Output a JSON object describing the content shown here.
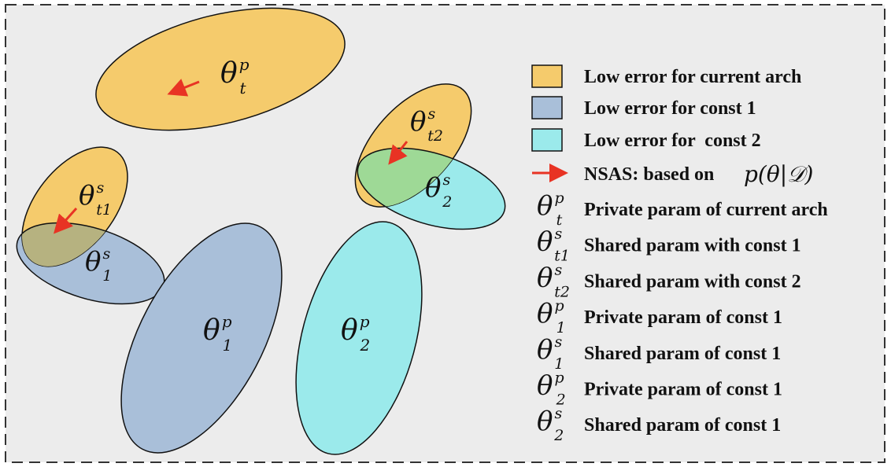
{
  "colors": {
    "background": "#ececec",
    "orange": "#f5cb6c",
    "blue": "#a9bfd9",
    "cyan": "#9beaeb",
    "overlap_orange_blue": "#b6b280",
    "overlap_orange_cyan": "#9ed996",
    "arrow": "#e83324",
    "border": "#333333"
  },
  "ellipse_labels": {
    "theta_t_p": {
      "base": "θ",
      "sup": "p",
      "sub": "t"
    },
    "theta_t1_s": {
      "base": "θ",
      "sup": "s",
      "sub": "t1"
    },
    "theta_1_s": {
      "base": "θ",
      "sup": "s",
      "sub": "1"
    },
    "theta_t2_s": {
      "base": "θ",
      "sup": "s",
      "sub": "t2"
    },
    "theta_2_s": {
      "base": "θ",
      "sup": "s",
      "sub": "2"
    },
    "theta_1_p": {
      "base": "θ",
      "sup": "p",
      "sub": "1"
    },
    "theta_2_p": {
      "base": "θ",
      "sup": "p",
      "sub": "2"
    }
  },
  "legend": {
    "swatches": [
      {
        "color_key": "orange",
        "label": "Low error for current arch"
      },
      {
        "color_key": "blue",
        "label": "Low error for const 1"
      },
      {
        "color_key": "cyan",
        "label": "Low error for  const 2"
      }
    ],
    "arrow_item": {
      "label": "NSAS: based on",
      "formula": "p(θ|𝒟)"
    },
    "symbols": [
      {
        "base": "θ",
        "sup": "p",
        "sub": "t",
        "label": "Private param of current arch"
      },
      {
        "base": "θ",
        "sup": "s",
        "sub": "t1",
        "label": "Shared param with const 1"
      },
      {
        "base": "θ",
        "sup": "s",
        "sub": "t2",
        "label": "Shared param with const 2"
      },
      {
        "base": "θ",
        "sup": "p",
        "sub": "1",
        "label": "Private param of const 1"
      },
      {
        "base": "θ",
        "sup": "s",
        "sub": "1",
        "label": "Shared param of const 1"
      },
      {
        "base": "θ",
        "sup": "p",
        "sub": "2",
        "label": "Private param of const 1"
      },
      {
        "base": "θ",
        "sup": "s",
        "sub": "2",
        "label": "Shared param of const 1"
      }
    ]
  }
}
